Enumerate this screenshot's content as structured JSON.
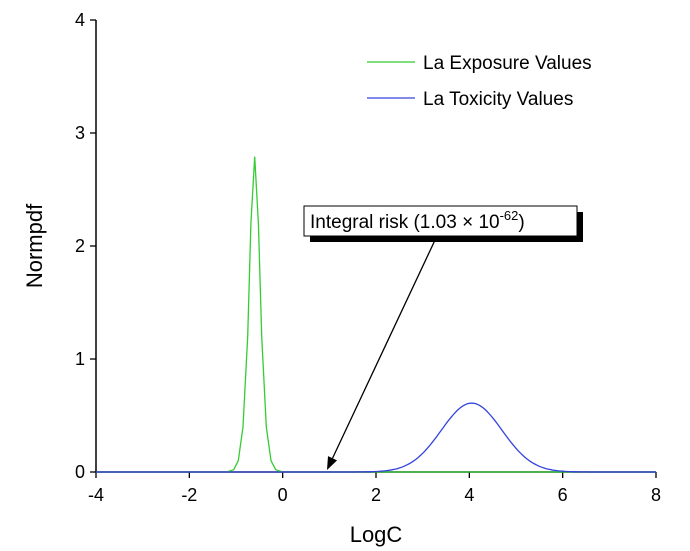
{
  "chart_data": {
    "type": "line",
    "title": "",
    "xlabel": "LogC",
    "ylabel": "Normpdf",
    "xlim": [
      -4,
      8
    ],
    "ylim": [
      0,
      4
    ],
    "xticks": [
      "-4",
      "-2",
      "0",
      "2",
      "4",
      "6",
      "8"
    ],
    "yticks": [
      "0",
      "1",
      "2",
      "3",
      "4"
    ],
    "grid": false,
    "legend_position": "top-right",
    "series": [
      {
        "name": "La Exposure Values",
        "color": "#33cc33",
        "points": [
          [
            -4.0,
            0.0
          ],
          [
            -1.2,
            0.0
          ],
          [
            -1.05,
            0.02
          ],
          [
            -0.95,
            0.1
          ],
          [
            -0.85,
            0.4
          ],
          [
            -0.75,
            1.2
          ],
          [
            -0.68,
            2.2
          ],
          [
            -0.6,
            2.79
          ],
          [
            -0.52,
            2.2
          ],
          [
            -0.45,
            1.2
          ],
          [
            -0.35,
            0.4
          ],
          [
            -0.25,
            0.1
          ],
          [
            -0.15,
            0.02
          ],
          [
            0.0,
            0.0
          ],
          [
            8.0,
            0.0
          ]
        ]
      },
      {
        "name": "La Toxicity Values",
        "color": "#3344dd",
        "distribution": {
          "mean": 4.05,
          "sd": 0.65,
          "peak": 0.61
        },
        "x_range": [
          -4.0,
          8.0
        ]
      }
    ],
    "annotations": [
      {
        "text_main": "Integral risk (1.03 × 10",
        "text_sup": "-62",
        "text_end": ")",
        "arrow_target": [
          0.95,
          0.0
        ]
      }
    ]
  }
}
